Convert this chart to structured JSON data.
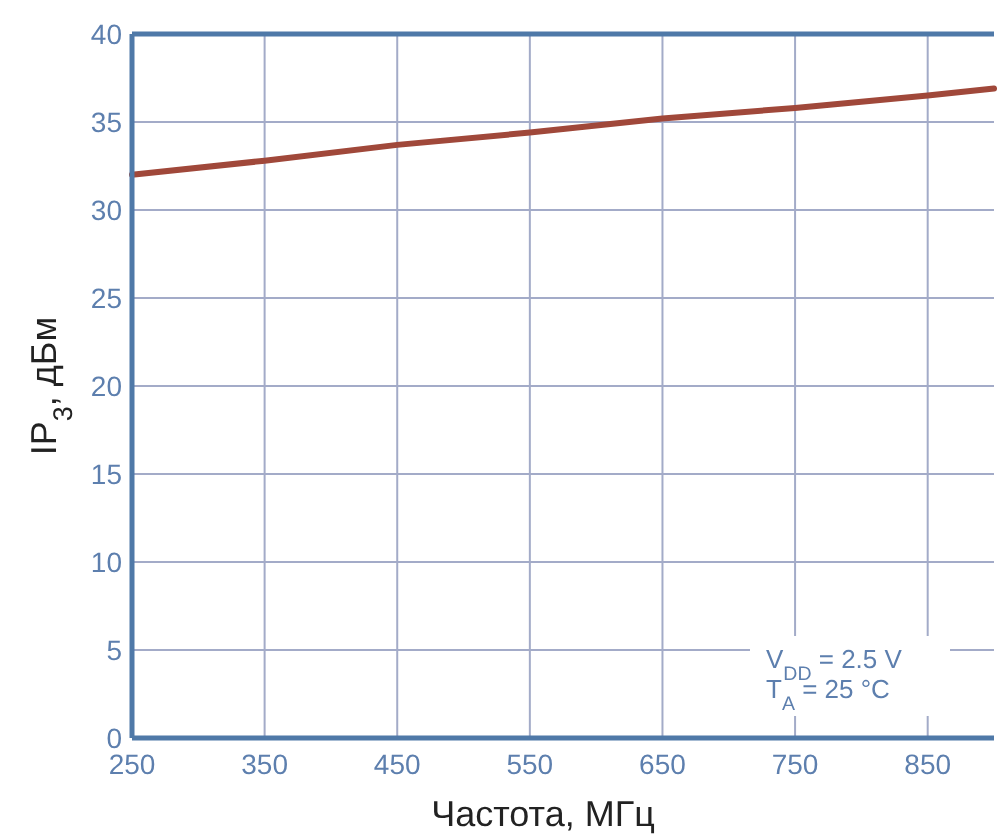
{
  "chart_data": {
    "type": "line",
    "xlabel": "Частота, МГц",
    "ylabel": "IP$_{3}$, дБм",
    "x": [
      250,
      350,
      450,
      550,
      650,
      750,
      850,
      900
    ],
    "series": [
      {
        "color": "#a0483a",
        "values": [
          32,
          32.8,
          33.7,
          34.4,
          35.2,
          35.8,
          36.5,
          36.9
        ]
      }
    ],
    "xlim": [
      250,
      900
    ],
    "xticks": [
      250,
      350,
      450,
      550,
      650,
      750,
      850
    ],
    "ylim": [
      0,
      40
    ],
    "yticks": [
      0,
      5,
      10,
      15,
      20,
      25,
      30,
      35,
      40
    ],
    "grid": true,
    "line_style": "solid",
    "annotations": [
      "V$_{DD}$ = 2.5 V",
      "T$_{A}$ = 25 °C"
    ]
  }
}
